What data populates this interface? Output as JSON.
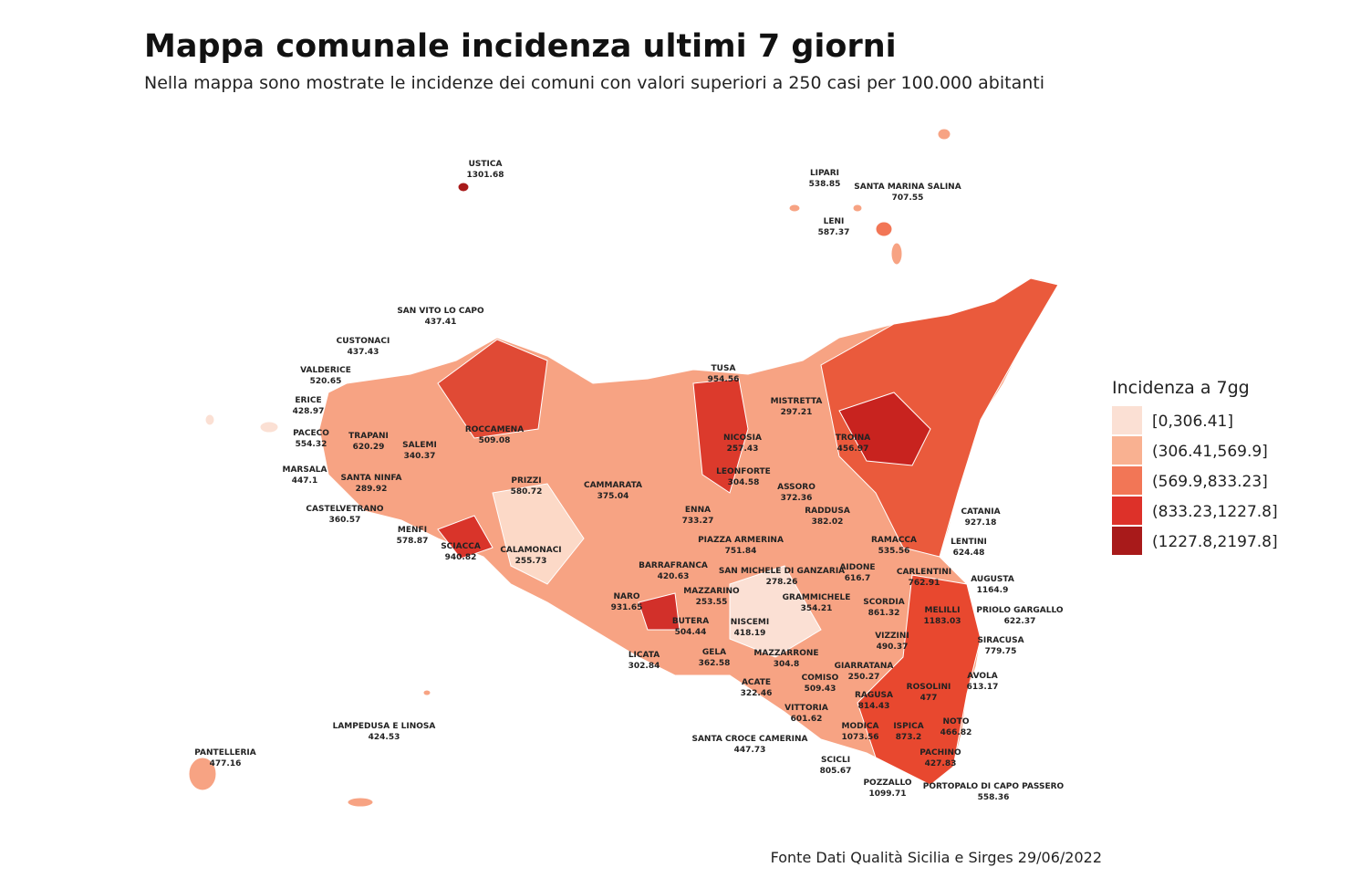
{
  "header": {
    "title": "Mappa comunale incidenza ultimi 7 giorni",
    "subtitle": "Nella mappa sono mostrate le incidenze dei comuni con valori superiori a 250 casi per 100.000 abitanti"
  },
  "legend": {
    "title": "Incidenza a 7gg",
    "items": [
      {
        "label": "[0,306.41]",
        "color": "#fbe0d4"
      },
      {
        "label": "(306.41,569.9]",
        "color": "#f9b191"
      },
      {
        "label": "(569.9,833.23]",
        "color": "#f27656"
      },
      {
        "label": "(833.23,1227.8]",
        "color": "#dd3129"
      },
      {
        "label": "(1227.8,2197.8]",
        "color": "#a81a1a"
      }
    ]
  },
  "labels": [
    {
      "name": "USTICA",
      "value": 1301.68
    },
    {
      "name": "LIPARI",
      "value": 538.85
    },
    {
      "name": "SANTA MARINA SALINA",
      "value": 707.55
    },
    {
      "name": "LENI",
      "value": 587.37
    },
    {
      "name": "SAN VITO LO CAPO",
      "value": 437.41
    },
    {
      "name": "CUSTONACI",
      "value": 437.43
    },
    {
      "name": "VALDERICE",
      "value": 520.65
    },
    {
      "name": "ERICE",
      "value": 428.97
    },
    {
      "name": "PACECO",
      "value": 554.32
    },
    {
      "name": "TRAPANI",
      "value": 620.29
    },
    {
      "name": "SALEMI",
      "value": 340.37
    },
    {
      "name": "MARSALA",
      "value": 447.1
    },
    {
      "name": "SANTA NINFA",
      "value": 289.92
    },
    {
      "name": "CASTELVETRANO",
      "value": 360.57
    },
    {
      "name": "MENFI",
      "value": 578.87
    },
    {
      "name": "SCIACCA",
      "value": 940.82
    },
    {
      "name": "ROCCAMENA",
      "value": 509.08
    },
    {
      "name": "PRIZZI",
      "value": 580.72
    },
    {
      "name": "CAMMARATA",
      "value": 375.04
    },
    {
      "name": "CALAMONACI",
      "value": 255.73
    },
    {
      "name": "TUSA",
      "value": 954.56
    },
    {
      "name": "MISTRETTA",
      "value": 297.21
    },
    {
      "name": "NICOSIA",
      "value": 257.43
    },
    {
      "name": "LEONFORTE",
      "value": 304.58
    },
    {
      "name": "ASSORO",
      "value": 372.36
    },
    {
      "name": "RADDUSA",
      "value": 382.02
    },
    {
      "name": "TROINA",
      "value": 456.97
    },
    {
      "name": "ENNA",
      "value": 733.27
    },
    {
      "name": "PIAZZA ARMERINA",
      "value": 751.84
    },
    {
      "name": "RAMACCA",
      "value": 535.56
    },
    {
      "name": "CATANIA",
      "value": 927.18
    },
    {
      "name": "LENTINI",
      "value": 624.48
    },
    {
      "name": "AIDONE",
      "value": 616.7
    },
    {
      "name": "CARLENTINI",
      "value": 762.91
    },
    {
      "name": "AUGUSTA",
      "value": 1164.9
    },
    {
      "name": "BARRAFRANCA",
      "value": 420.63
    },
    {
      "name": "SAN MICHELE DI GANZARIA",
      "value": 278.26
    },
    {
      "name": "MAZZARINO",
      "value": 253.55
    },
    {
      "name": "GRAMMICHELE",
      "value": 354.21
    },
    {
      "name": "SCORDIA",
      "value": 861.32
    },
    {
      "name": "MELILLI",
      "value": 1183.03
    },
    {
      "name": "PRIOLO GARGALLO",
      "value": 622.37
    },
    {
      "name": "NARO",
      "value": 931.65
    },
    {
      "name": "BUTERA",
      "value": 504.44
    },
    {
      "name": "NISCEMI",
      "value": 418.19
    },
    {
      "name": "VIZZINI",
      "value": 490.37
    },
    {
      "name": "SIRACUSA",
      "value": 779.75
    },
    {
      "name": "LICATA",
      "value": 302.84
    },
    {
      "name": "GELA",
      "value": 362.58
    },
    {
      "name": "MAZZARRONE",
      "value": 304.8
    },
    {
      "name": "ACATE",
      "value": 322.46
    },
    {
      "name": "COMISO",
      "value": 509.43
    },
    {
      "name": "GIARRATANA",
      "value": 250.27
    },
    {
      "name": "ROSOLINI",
      "value": 477
    },
    {
      "name": "AVOLA",
      "value": 613.17
    },
    {
      "name": "VITTORIA",
      "value": 601.62
    },
    {
      "name": "RAGUSA",
      "value": 814.43
    },
    {
      "name": "MODICA",
      "value": 1073.56
    },
    {
      "name": "ISPICA",
      "value": 873.2
    },
    {
      "name": "NOTO",
      "value": 466.82
    },
    {
      "name": "SANTA CROCE CAMERINA",
      "value": 447.73
    },
    {
      "name": "PACHINO",
      "value": 427.83
    },
    {
      "name": "SCICLI",
      "value": 805.67
    },
    {
      "name": "POZZALLO",
      "value": 1099.71
    },
    {
      "name": "PORTOPALO DI CAPO PASSERO",
      "value": 558.36
    },
    {
      "name": "LAMPEDUSA E LINOSA",
      "value": 424.53
    },
    {
      "name": "PANTELLERIA",
      "value": 477.16
    }
  ],
  "footer": {
    "source": "Fonte Dati Qualità Sicilia e Sirges 29/06/2022"
  }
}
